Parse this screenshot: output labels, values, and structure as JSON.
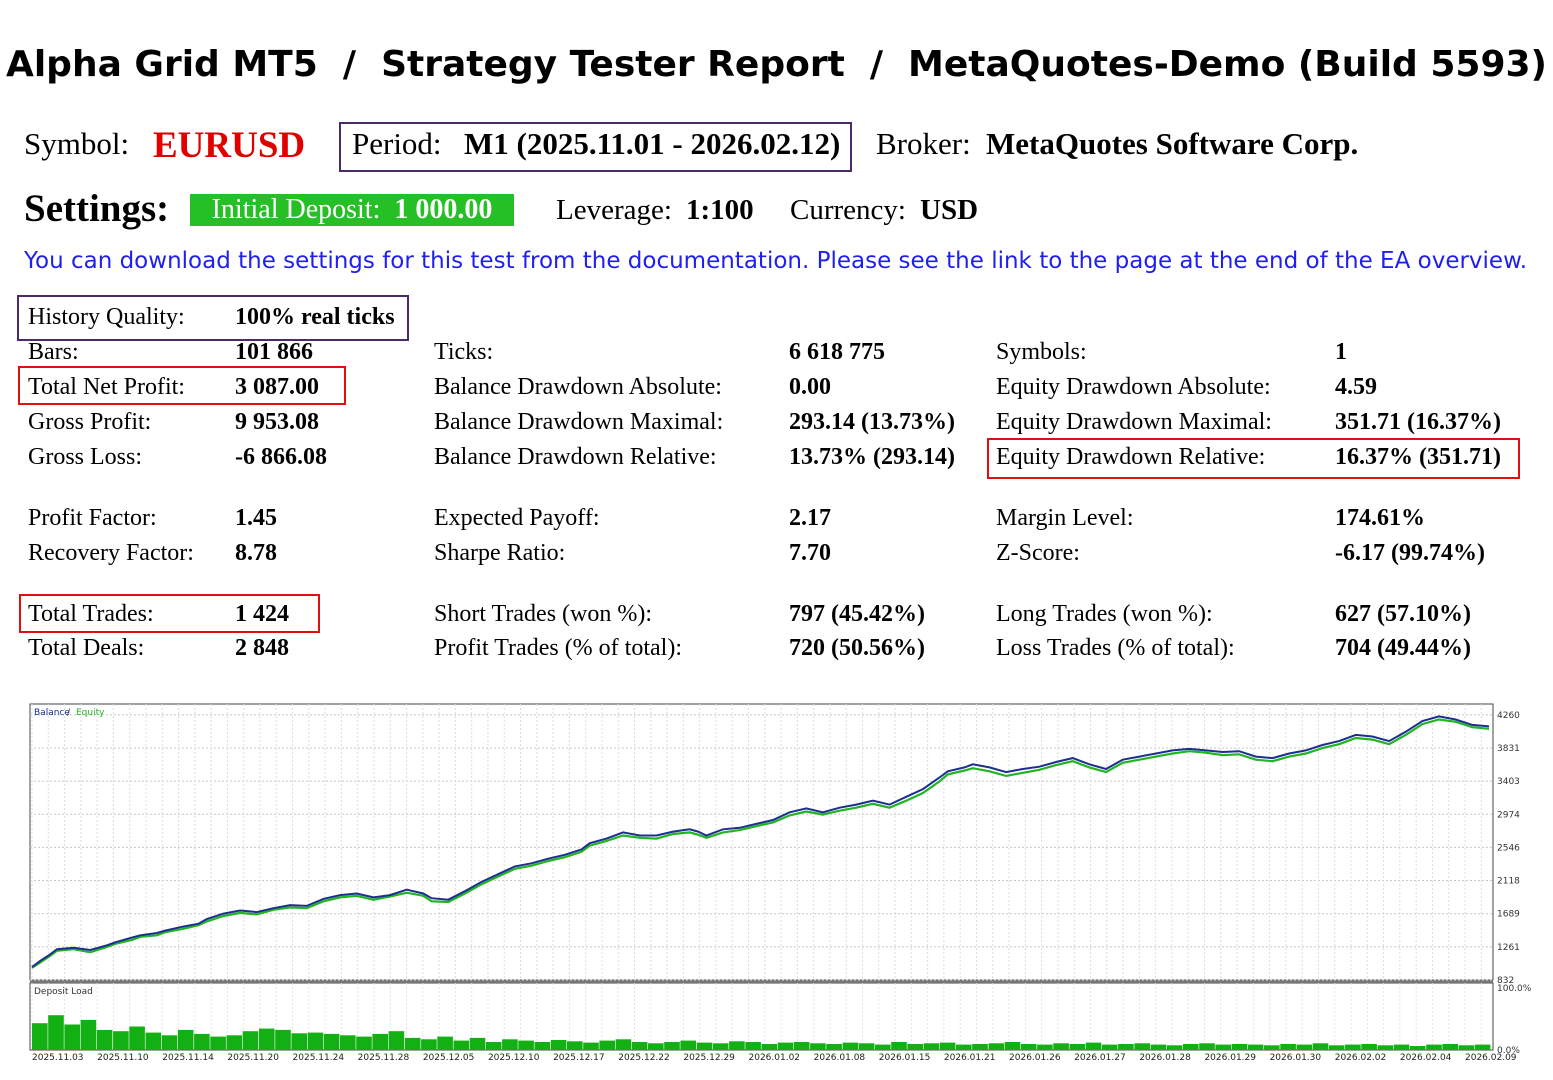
{
  "title": "Alpha Grid MT5  /  Strategy Tester Report  /  MetaQuotes-Demo (Build 5593)",
  "header": {
    "symbol_label": "Symbol:",
    "symbol_value": "EURUSD",
    "period_label": "Period:",
    "period_value": "M1 (2025.11.01 - 2026.02.12)",
    "broker_label": "Broker:",
    "broker_value": "MetaQuotes Software Corp."
  },
  "settings": {
    "label": "Settings:",
    "deposit_label": "Initial Deposit:",
    "deposit_value": "1 000.00",
    "leverage_label": "Leverage:",
    "leverage_value": "1:100",
    "currency_label": "Currency:",
    "currency_value": "USD"
  },
  "note": "You can download the settings for this test from the documentation. Please see the link to the page at the end of the EA overview.",
  "stats": {
    "history_quality": {
      "label": "History Quality:",
      "value": "100% real ticks"
    },
    "bars": {
      "label": "Bars:",
      "value": "101 866"
    },
    "total_net_profit": {
      "label": "Total Net Profit:",
      "value": "3 087.00"
    },
    "gross_profit": {
      "label": "Gross Profit:",
      "value": "9 953.08"
    },
    "gross_loss": {
      "label": "Gross Loss:",
      "value": "-6 866.08"
    },
    "profit_factor": {
      "label": "Profit Factor:",
      "value": "1.45"
    },
    "recovery_factor": {
      "label": "Recovery Factor:",
      "value": "8.78"
    },
    "total_trades": {
      "label": "Total Trades:",
      "value": "1 424"
    },
    "total_deals": {
      "label": "Total Deals:",
      "value": "2 848"
    },
    "ticks": {
      "label": "Ticks:",
      "value": "6 618 775"
    },
    "balance_dd_abs": {
      "label": "Balance Drawdown Absolute:",
      "value": "0.00"
    },
    "balance_dd_max": {
      "label": "Balance Drawdown Maximal:",
      "value": "293.14 (13.73%)"
    },
    "balance_dd_rel": {
      "label": "Balance Drawdown Relative:",
      "value": "13.73% (293.14)"
    },
    "expected_payoff": {
      "label": "Expected Payoff:",
      "value": "2.17"
    },
    "sharpe_ratio": {
      "label": "Sharpe Ratio:",
      "value": "7.70"
    },
    "short_trades": {
      "label": "Short Trades (won %):",
      "value": "797 (45.42%)"
    },
    "profit_trades": {
      "label": "Profit Trades (% of total):",
      "value": "720 (50.56%)"
    },
    "symbols": {
      "label": "Symbols:",
      "value": "1"
    },
    "equity_dd_abs": {
      "label": "Equity Drawdown Absolute:",
      "value": "4.59"
    },
    "equity_dd_max": {
      "label": "Equity Drawdown Maximal:",
      "value": "351.71 (16.37%)"
    },
    "equity_dd_rel": {
      "label": "Equity Drawdown Relative:",
      "value": "16.37% (351.71)"
    },
    "margin_level": {
      "label": "Margin Level:",
      "value": "174.61%"
    },
    "z_score": {
      "label": "Z-Score:",
      "value": "-6.17 (99.74%)"
    },
    "long_trades": {
      "label": "Long Trades (won %):",
      "value": "627 (57.10%)"
    },
    "loss_trades": {
      "label": "Loss Trades (% of total):",
      "value": "704 (49.44%)"
    }
  },
  "colors": {
    "red": "#e00000",
    "green_box": "#26c026",
    "balance": "#1c2f8f",
    "equity": "#22b422",
    "deposit_load": "#12b012",
    "box_purple": "#4b2a6b",
    "box_red": "#e01010"
  },
  "chart_data": [
    {
      "type": "line",
      "legend": [
        "Balance",
        "Equity"
      ],
      "legend_placement": "top-left",
      "y_ticks": [
        832,
        1261,
        1689,
        2118,
        2546,
        2974,
        3403,
        3831,
        4260
      ],
      "ylim": [
        832,
        4400
      ],
      "x_tick_labels": [
        "2025.11.03",
        "2025.11.10",
        "2025.11.14",
        "2025.11.20",
        "2025.11.24",
        "2025.11.28",
        "2025.12.05",
        "2025.12.10",
        "2025.12.17",
        "2025.12.22",
        "2025.12.29",
        "2026.01.02",
        "2026.01.08",
        "2026.01.15",
        "2026.01.21",
        "2026.01.26",
        "2026.01.27",
        "2026.01.28",
        "2026.01.29",
        "2026.01.30",
        "2026.02.02",
        "2026.02.04",
        "2026.02.09"
      ],
      "series": [
        {
          "name": "Balance",
          "points": [
            [
              0,
              1000
            ],
            [
              0.01,
              1080
            ],
            [
              0.02,
              1150
            ],
            [
              0.03,
              1230
            ],
            [
              0.05,
              1250
            ],
            [
              0.07,
              1220
            ],
            [
              0.09,
              1280
            ],
            [
              0.1,
              1320
            ],
            [
              0.12,
              1380
            ],
            [
              0.13,
              1410
            ],
            [
              0.15,
              1440
            ],
            [
              0.16,
              1470
            ],
            [
              0.18,
              1520
            ],
            [
              0.2,
              1560
            ],
            [
              0.21,
              1620
            ],
            [
              0.23,
              1690
            ],
            [
              0.25,
              1730
            ],
            [
              0.27,
              1710
            ],
            [
              0.29,
              1760
            ],
            [
              0.31,
              1800
            ],
            [
              0.33,
              1790
            ],
            [
              0.35,
              1880
            ],
            [
              0.37,
              1930
            ],
            [
              0.39,
              1950
            ],
            [
              0.41,
              1900
            ],
            [
              0.43,
              1930
            ],
            [
              0.45,
              2000
            ],
            [
              0.47,
              1950
            ],
            [
              0.48,
              1890
            ],
            [
              0.5,
              1870
            ],
            [
              0.52,
              1980
            ],
            [
              0.54,
              2100
            ],
            [
              0.56,
              2200
            ],
            [
              0.58,
              2300
            ],
            [
              0.6,
              2340
            ],
            [
              0.62,
              2400
            ],
            [
              0.64,
              2450
            ],
            [
              0.66,
              2520
            ],
            [
              0.67,
              2600
            ],
            [
              0.69,
              2660
            ],
            [
              0.71,
              2740
            ],
            [
              0.73,
              2700
            ],
            [
              0.75,
              2700
            ],
            [
              0.77,
              2750
            ],
            [
              0.79,
              2780
            ],
            [
              0.8,
              2750
            ],
            [
              0.81,
              2700
            ],
            [
              0.83,
              2780
            ],
            [
              0.85,
              2800
            ],
            [
              0.87,
              2850
            ],
            [
              0.89,
              2900
            ],
            [
              0.91,
              3000
            ],
            [
              0.93,
              3050
            ],
            [
              0.95,
              3000
            ],
            [
              0.97,
              3060
            ],
            [
              0.99,
              3100
            ],
            [
              1.01,
              3150
            ],
            [
              1.03,
              3100
            ],
            [
              1.05,
              3200
            ],
            [
              1.07,
              3300
            ],
            [
              1.09,
              3450
            ],
            [
              1.1,
              3530
            ],
            [
              1.12,
              3580
            ],
            [
              1.13,
              3620
            ],
            [
              1.15,
              3580
            ],
            [
              1.17,
              3520
            ],
            [
              1.19,
              3560
            ],
            [
              1.21,
              3590
            ],
            [
              1.23,
              3650
            ],
            [
              1.25,
              3700
            ],
            [
              1.27,
              3620
            ],
            [
              1.29,
              3560
            ],
            [
              1.31,
              3680
            ],
            [
              1.33,
              3720
            ],
            [
              1.35,
              3760
            ],
            [
              1.37,
              3800
            ],
            [
              1.39,
              3820
            ],
            [
              1.41,
              3800
            ],
            [
              1.43,
              3780
            ],
            [
              1.45,
              3790
            ],
            [
              1.47,
              3720
            ],
            [
              1.49,
              3700
            ],
            [
              1.51,
              3760
            ],
            [
              1.53,
              3800
            ],
            [
              1.55,
              3870
            ],
            [
              1.57,
              3920
            ],
            [
              1.59,
              4000
            ],
            [
              1.61,
              3980
            ],
            [
              1.63,
              3920
            ],
            [
              1.65,
              4040
            ],
            [
              1.67,
              4180
            ],
            [
              1.69,
              4240
            ],
            [
              1.71,
              4200
            ],
            [
              1.73,
              4130
            ],
            [
              1.75,
              4110
            ]
          ]
        },
        {
          "name": "Equity",
          "points": [
            [
              0,
              990
            ],
            [
              0.01,
              1060
            ],
            [
              0.02,
              1130
            ],
            [
              0.03,
              1210
            ],
            [
              0.05,
              1230
            ],
            [
              0.07,
              1190
            ],
            [
              0.09,
              1260
            ],
            [
              0.1,
              1300
            ],
            [
              0.12,
              1350
            ],
            [
              0.13,
              1390
            ],
            [
              0.15,
              1410
            ],
            [
              0.16,
              1450
            ],
            [
              0.18,
              1490
            ],
            [
              0.2,
              1540
            ],
            [
              0.21,
              1590
            ],
            [
              0.23,
              1660
            ],
            [
              0.25,
              1700
            ],
            [
              0.27,
              1680
            ],
            [
              0.29,
              1740
            ],
            [
              0.31,
              1770
            ],
            [
              0.33,
              1760
            ],
            [
              0.35,
              1850
            ],
            [
              0.37,
              1900
            ],
            [
              0.39,
              1920
            ],
            [
              0.41,
              1870
            ],
            [
              0.43,
              1910
            ],
            [
              0.45,
              1960
            ],
            [
              0.47,
              1920
            ],
            [
              0.48,
              1850
            ],
            [
              0.5,
              1840
            ],
            [
              0.52,
              1950
            ],
            [
              0.54,
              2070
            ],
            [
              0.56,
              2170
            ],
            [
              0.58,
              2270
            ],
            [
              0.6,
              2310
            ],
            [
              0.62,
              2370
            ],
            [
              0.64,
              2420
            ],
            [
              0.66,
              2490
            ],
            [
              0.67,
              2570
            ],
            [
              0.69,
              2630
            ],
            [
              0.71,
              2700
            ],
            [
              0.73,
              2670
            ],
            [
              0.75,
              2660
            ],
            [
              0.77,
              2720
            ],
            [
              0.79,
              2740
            ],
            [
              0.8,
              2710
            ],
            [
              0.81,
              2670
            ],
            [
              0.83,
              2740
            ],
            [
              0.85,
              2770
            ],
            [
              0.87,
              2820
            ],
            [
              0.89,
              2870
            ],
            [
              0.91,
              2960
            ],
            [
              0.93,
              3010
            ],
            [
              0.95,
              2970
            ],
            [
              0.97,
              3020
            ],
            [
              0.99,
              3060
            ],
            [
              1.01,
              3110
            ],
            [
              1.03,
              3060
            ],
            [
              1.05,
              3150
            ],
            [
              1.07,
              3250
            ],
            [
              1.09,
              3400
            ],
            [
              1.1,
              3490
            ],
            [
              1.12,
              3540
            ],
            [
              1.13,
              3570
            ],
            [
              1.15,
              3530
            ],
            [
              1.17,
              3470
            ],
            [
              1.19,
              3510
            ],
            [
              1.21,
              3550
            ],
            [
              1.23,
              3610
            ],
            [
              1.25,
              3660
            ],
            [
              1.27,
              3580
            ],
            [
              1.29,
              3520
            ],
            [
              1.31,
              3640
            ],
            [
              1.33,
              3680
            ],
            [
              1.35,
              3720
            ],
            [
              1.37,
              3760
            ],
            [
              1.39,
              3790
            ],
            [
              1.41,
              3770
            ],
            [
              1.43,
              3740
            ],
            [
              1.45,
              3750
            ],
            [
              1.47,
              3680
            ],
            [
              1.49,
              3660
            ],
            [
              1.51,
              3720
            ],
            [
              1.53,
              3760
            ],
            [
              1.55,
              3830
            ],
            [
              1.57,
              3880
            ],
            [
              1.59,
              3960
            ],
            [
              1.61,
              3940
            ],
            [
              1.63,
              3880
            ],
            [
              1.65,
              4000
            ],
            [
              1.67,
              4140
            ],
            [
              1.69,
              4200
            ],
            [
              1.71,
              4170
            ],
            [
              1.73,
              4100
            ],
            [
              1.75,
              4080
            ]
          ]
        }
      ]
    },
    {
      "type": "bar",
      "title": "Deposit Load",
      "y_tick_labels": [
        "100.0%",
        "0.0%"
      ],
      "ylim": [
        0,
        100
      ],
      "series": [
        {
          "values": [
            40,
            52,
            38,
            45,
            30,
            28,
            35,
            26,
            22,
            30,
            24,
            20,
            22,
            28,
            32,
            30,
            25,
            26,
            24,
            22,
            20,
            24,
            28,
            18,
            16,
            20,
            14,
            18,
            12,
            16,
            14,
            12,
            15,
            13,
            11,
            14,
            16,
            12,
            10,
            12,
            14,
            11,
            10,
            13,
            12,
            9,
            11,
            12,
            10,
            9,
            11,
            10,
            8,
            12,
            9,
            10,
            11,
            8,
            9,
            10,
            12,
            9,
            8,
            10,
            9,
            11,
            8,
            9,
            10,
            8,
            7,
            9,
            10,
            8,
            9,
            8,
            7,
            9,
            8,
            10,
            7,
            8,
            9,
            7,
            8,
            6,
            8,
            9,
            7,
            8
          ]
        }
      ]
    }
  ]
}
